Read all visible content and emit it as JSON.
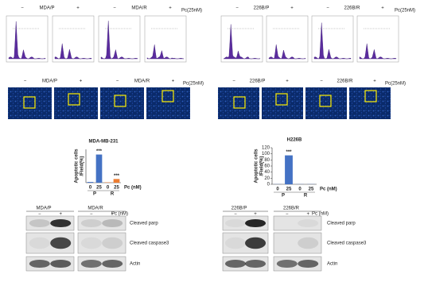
{
  "flow": {
    "left": {
      "groups": [
        "MDA/P",
        "MDA/R"
      ],
      "signs": [
        "−",
        "+",
        "−",
        "+"
      ],
      "treatment": "Pc(25nM)"
    },
    "right": {
      "groups": [
        "226B/P",
        "226B/R"
      ],
      "signs": [
        "−",
        "+",
        "−",
        "+"
      ],
      "treatment": "Pc(25nM)"
    }
  },
  "imaging": {
    "left": {
      "groups": [
        "MDA/P",
        "MDA/R"
      ],
      "signs": [
        "−",
        "+",
        "−",
        "+"
      ],
      "treatment": "Pc(25nM)"
    },
    "right": {
      "groups": [
        "226B/P",
        "226B/R"
      ],
      "signs": [
        "−",
        "+",
        "−",
        "+"
      ],
      "treatment": "Pc(25nM)"
    }
  },
  "chart_data": [
    {
      "type": "bar",
      "title": "MDA-MB-231",
      "y_label": [
        "Apoptotic cells",
        "/Field(%)"
      ],
      "categories": [
        "0",
        "25",
        "0",
        "25"
      ],
      "groups": [
        "P",
        "R"
      ],
      "x_label": "Pc (nM)",
      "values": [
        1,
        38,
        0.5,
        5
      ],
      "colors": [
        "#4472c4",
        "#4472c4",
        "#ed7d31",
        "#ed7d31"
      ],
      "annotations": [
        null,
        "***",
        null,
        "***"
      ],
      "ylim": [
        0,
        45
      ]
    },
    {
      "type": "bar",
      "title": "H226B",
      "y_label": [
        "Apoptotic cells",
        "/Field(%)"
      ],
      "categories": [
        "0",
        "25",
        "0",
        "25"
      ],
      "groups": [
        "P",
        "R"
      ],
      "x_label": "Pc (nM)",
      "values": [
        0.5,
        95,
        0.5,
        0.5
      ],
      "colors": [
        "#4472c4",
        "#4472c4",
        "#4472c4",
        "#4472c4"
      ],
      "annotations": [
        null,
        "***",
        null,
        null
      ],
      "ylim": [
        0,
        120
      ],
      "yticks": [
        0,
        20,
        40,
        60,
        80,
        100,
        120
      ]
    }
  ],
  "blots": {
    "left": {
      "groups": [
        "MDA/P",
        "MDA/R"
      ],
      "signs": [
        "−",
        "+",
        "−",
        "+"
      ],
      "treatment": "Pc (nM)",
      "rows": [
        "Cleaved parp",
        "Cleaved caspase3",
        "Actin"
      ]
    },
    "right": {
      "groups": [
        "226B/P",
        "226B/R"
      ],
      "signs": [
        "−",
        "+",
        "−",
        "+"
      ],
      "treatment": "Pc (nM)",
      "rows": [
        "Cleaved parp",
        "Cleaved caspase3",
        "Actin"
      ]
    }
  }
}
